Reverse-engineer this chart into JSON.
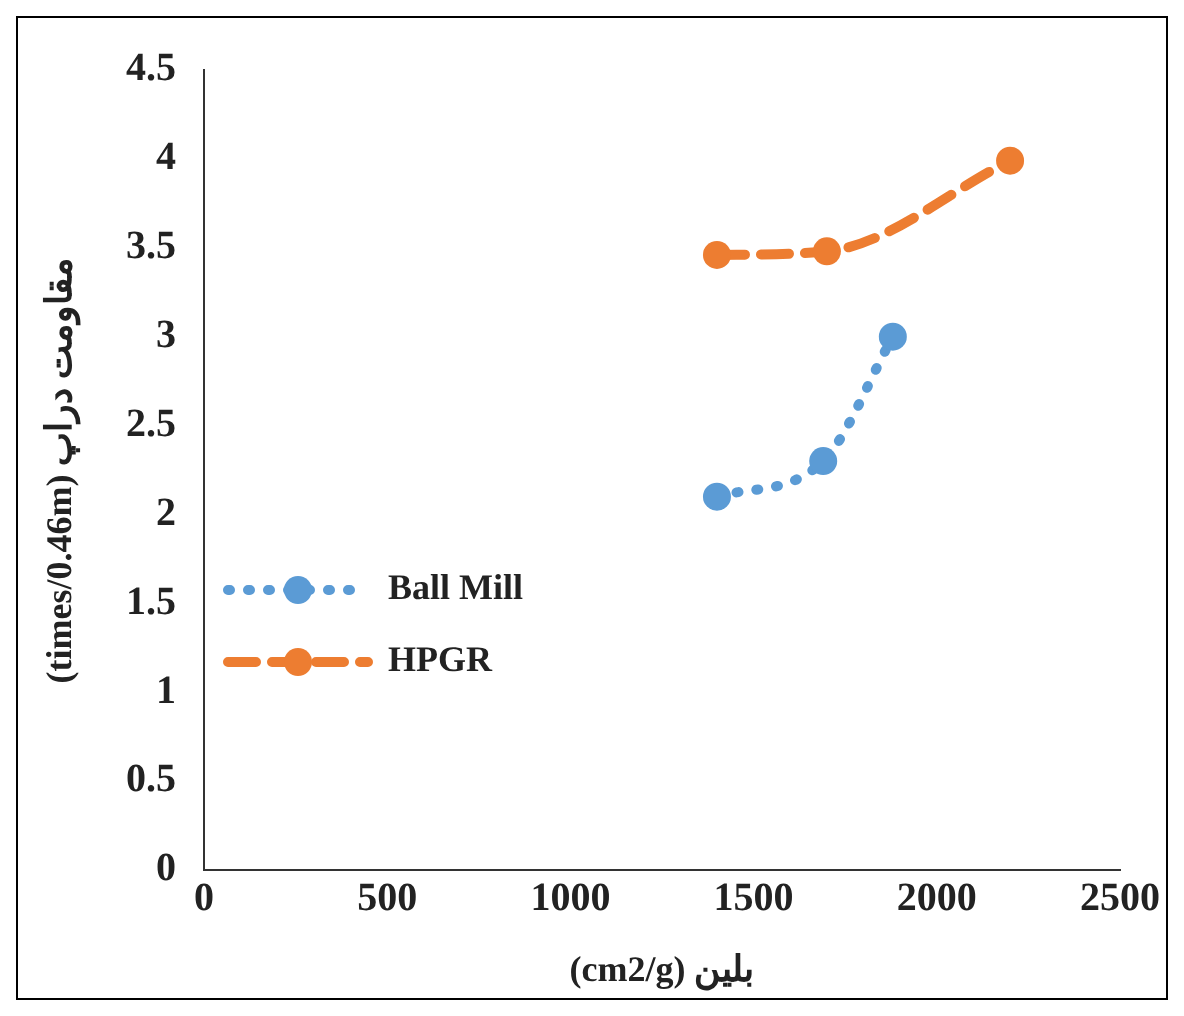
{
  "chart_data": {
    "type": "line",
    "xlabel": "بلین (cm2/g)",
    "ylabel": "مقاومت دراپ (times/0.46m)",
    "xlim": [
      0,
      2500
    ],
    "xticks": [
      0,
      500,
      1000,
      1500,
      2000,
      2500
    ],
    "ylim": [
      0,
      4.5
    ],
    "yticks": [
      0,
      0.5,
      1,
      1.5,
      2,
      2.5,
      3,
      3.5,
      4,
      4.5
    ],
    "grid": false,
    "legend": "left",
    "marker": "circle",
    "series": [
      {
        "name": "Ball Mill",
        "color": "#5b9bd5",
        "line_style": "dotted",
        "x": [
          1400,
          1690,
          1880
        ],
        "values": [
          2.1,
          2.3,
          3.0
        ]
      },
      {
        "name": "HPGR",
        "color": "#ed7d31",
        "line_style": "dashed",
        "x": [
          1400,
          1700,
          2200
        ],
        "values": [
          3.46,
          3.48,
          3.99
        ]
      }
    ]
  }
}
